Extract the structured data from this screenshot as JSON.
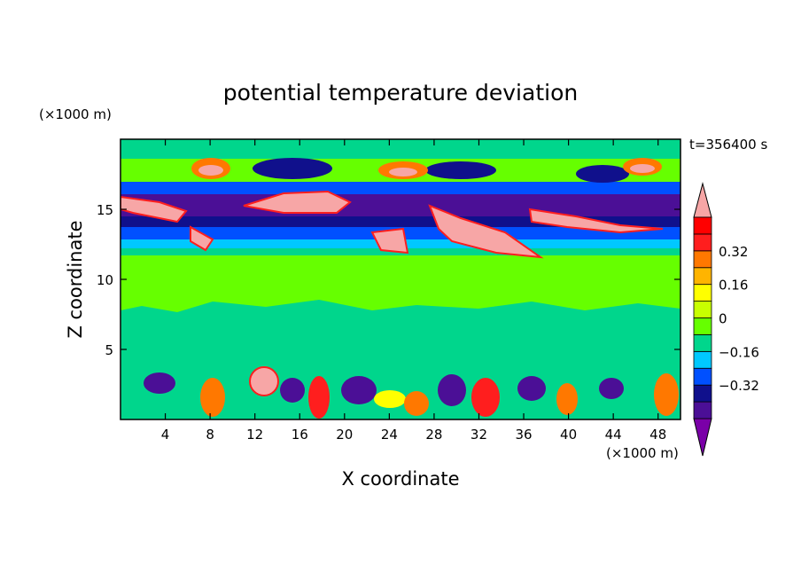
{
  "chart_data": {
    "type": "heatmap",
    "title": "potential temperature deviation",
    "xlabel": "X coordinate",
    "ylabel": "Z coordinate",
    "x_unit": "(×1000 m)",
    "y_unit": "(×1000 m)",
    "time_label": "t=356400 s",
    "xlim": [
      0,
      50
    ],
    "ylim": [
      0,
      20
    ],
    "x_ticks": [
      4,
      8,
      12,
      16,
      20,
      24,
      28,
      32,
      36,
      40,
      44,
      48
    ],
    "y_ticks": [
      5,
      10,
      15
    ],
    "colorbar": {
      "levels": [
        -0.48,
        -0.4,
        -0.32,
        -0.24,
        -0.16,
        -0.08,
        0,
        0.08,
        0.16,
        0.24,
        0.32,
        0.4,
        0.48
      ],
      "colors": [
        "#7a00a8",
        "#4b0f96",
        "#10108c",
        "#0050ff",
        "#00c8ff",
        "#00d68c",
        "#66ff00",
        "#c8ff00",
        "#ffff00",
        "#ffb400",
        "#ff7800",
        "#ff1e1e",
        "#ff0000",
        "#f7a6a6"
      ],
      "tick_labels": [
        "0.32",
        "0.16",
        "0",
        "−0.16",
        "−0.32"
      ],
      "tick_values": [
        0.32,
        0.16,
        0,
        -0.16,
        -0.32
      ],
      "extend": "both"
    },
    "grid": false
  }
}
